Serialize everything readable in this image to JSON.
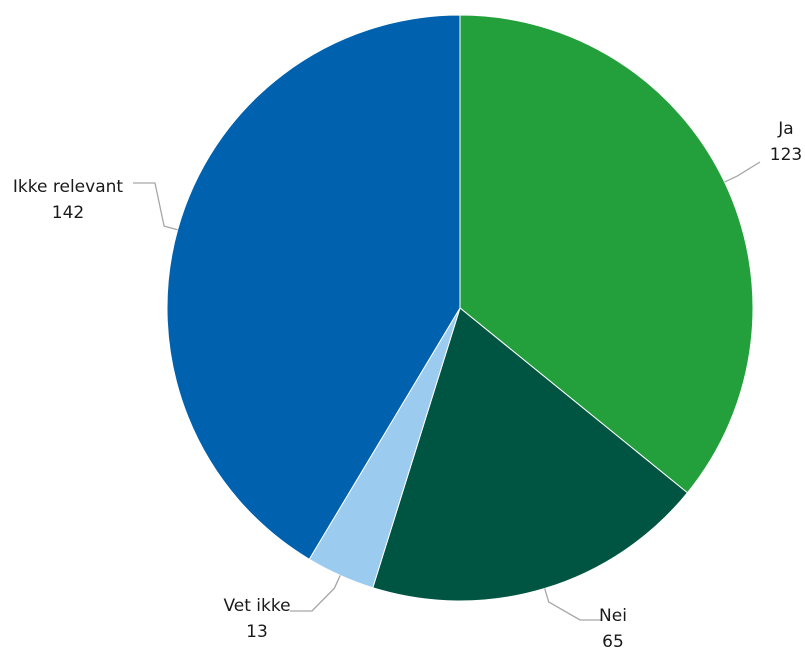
{
  "chart_data": {
    "type": "pie",
    "slices": [
      {
        "label": "Ja",
        "value": 123,
        "color": "#23a03b"
      },
      {
        "label": "Nei",
        "value": 65,
        "color": "#005542"
      },
      {
        "label": "Vet ikke",
        "value": 13,
        "color": "#9bcbef"
      },
      {
        "label": "Ikke relevant",
        "value": 142,
        "color": "#0062ae"
      }
    ]
  }
}
